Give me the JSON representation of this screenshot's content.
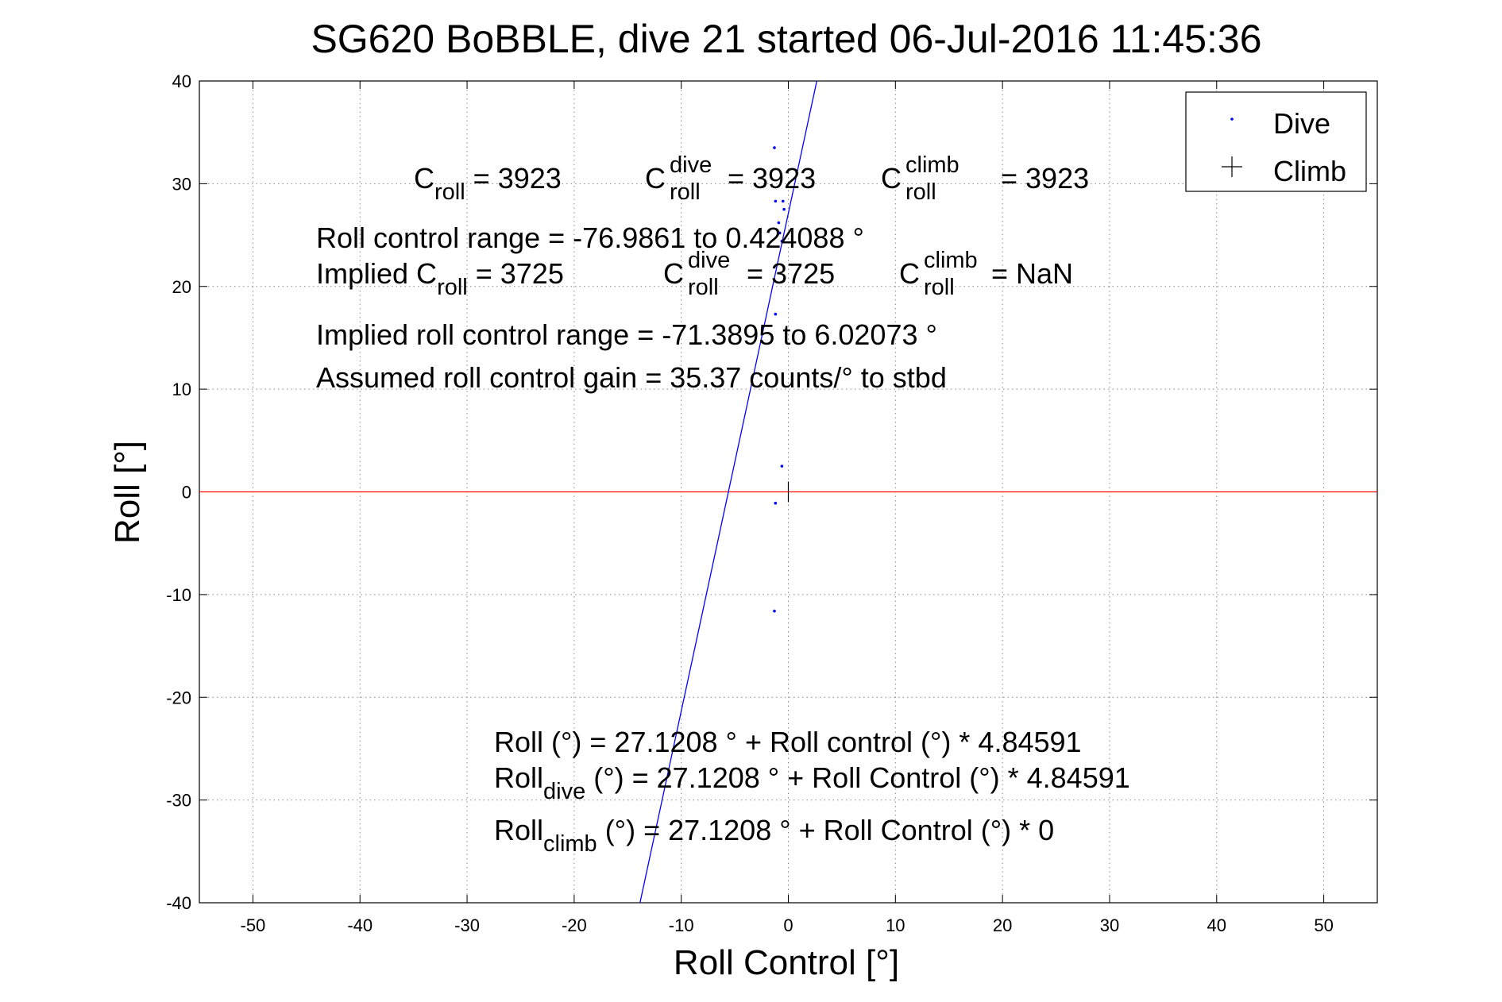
{
  "chart_data": {
    "type": "scatter",
    "title": "SG620 BoBBLE, dive 21 started 06-Jul-2016 11:45:36",
    "xlabel": "Roll Control [°]",
    "ylabel": "Roll [°]",
    "xlim": [
      -55,
      55
    ],
    "ylim": [
      -40,
      40
    ],
    "xticks": [
      -50,
      -40,
      -30,
      -20,
      -10,
      0,
      10,
      20,
      30,
      40,
      50
    ],
    "yticks": [
      -40,
      -30,
      -20,
      -10,
      0,
      10,
      20,
      30,
      40
    ],
    "grid": true,
    "legend_position": "top-right",
    "legend": [
      {
        "name": "Dive",
        "marker": "dot",
        "color": "#0000ff"
      },
      {
        "name": "Climb",
        "marker": "plus",
        "color": "#000000"
      }
    ],
    "series": [
      {
        "name": "Dive",
        "color": "#0000ff",
        "points": [
          [
            -1.3,
            33.5
          ],
          [
            -1.2,
            28.3
          ],
          [
            -0.5,
            28.3
          ],
          [
            -0.4,
            27.5
          ],
          [
            -0.9,
            26.2
          ],
          [
            -0.8,
            25.2
          ],
          [
            -0.6,
            24.4
          ],
          [
            -1.2,
            17.3
          ],
          [
            -0.6,
            2.5
          ],
          [
            -1.2,
            -1.1
          ],
          [
            -1.3,
            -11.6
          ]
        ]
      },
      {
        "name": "Climb",
        "color": "#000000",
        "points": []
      }
    ],
    "fit_line": {
      "intercept": 27.1208,
      "slope": 4.84591,
      "color": "#0000ff"
    },
    "zero_line": {
      "y": 0,
      "color": "#ff0000"
    },
    "zero_tick": {
      "x": 0,
      "y_from": -1,
      "y_to": 1,
      "color": "#000000"
    }
  },
  "annotations": {
    "c_roll": {
      "base": "C",
      "sub": "roll",
      "rest": " = 3923"
    },
    "c_roll_dive": {
      "base": "C",
      "sup": "dive",
      "sub": "roll",
      "rest": " = 3923"
    },
    "c_roll_climb": {
      "base": "C",
      "sup": "climb",
      "sub": "roll",
      "rest": " = 3923"
    },
    "roll_range": "Roll control range = -76.9861 to 0.424088 °",
    "implied_c_roll": {
      "base": "Implied C",
      "sub": "roll",
      "rest": " = 3725"
    },
    "implied_c_roll_dive": {
      "base": "C",
      "sup": "dive",
      "sub": "roll",
      "rest": " = 3725"
    },
    "implied_c_roll_climb": {
      "base": "C",
      "sup": "climb",
      "sub": "roll",
      "rest": " =  NaN"
    },
    "implied_range": "Implied roll control range = -71.3895 to 6.02073 °",
    "gain": "Assumed roll control gain = 35.37 counts/° to stbd",
    "fit_all": "Roll (°) = 27.1208 ° + Roll control (°) * 4.84591",
    "fit_dive": {
      "base": "Roll",
      "sub": "dive",
      "rest": " (°) = 27.1208 ° + Roll Control (°) * 4.84591"
    },
    "fit_climb": {
      "base": "Roll",
      "sub": "climb",
      "rest": " (°) = 27.1208 ° + Roll Control (°) * 0"
    }
  }
}
